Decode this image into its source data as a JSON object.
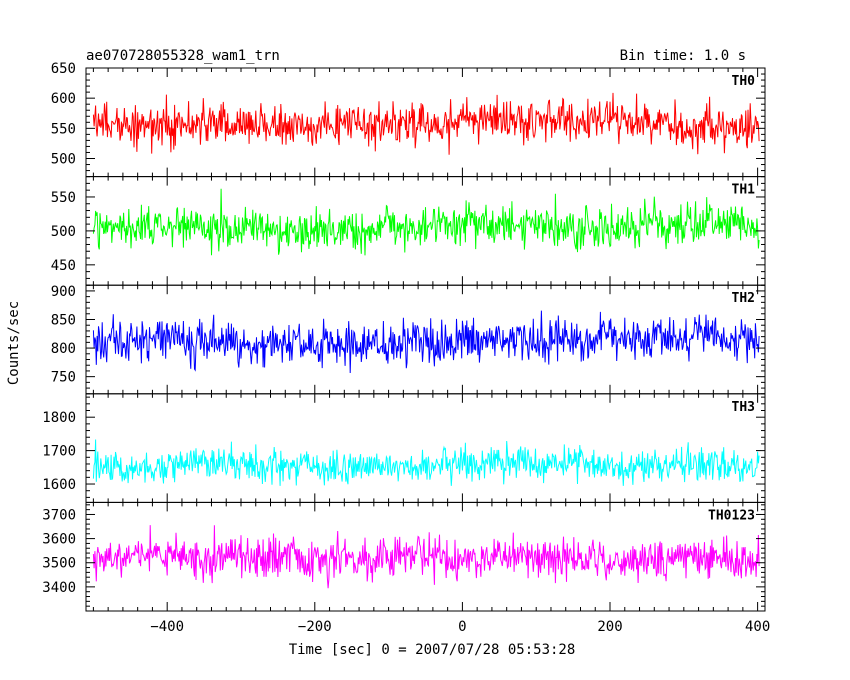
{
  "header": {
    "left_title": "ae070728055328_wam1_trn",
    "right_title": "Bin time: 1.0 s"
  },
  "chart_data": {
    "type": "line",
    "x_range": [
      -510,
      410
    ],
    "x_ticks": [
      -400,
      -200,
      0,
      200,
      400
    ],
    "x_tick_labels": [
      "−400",
      "−200",
      "0",
      "200",
      "400"
    ],
    "xlabel": "Time [sec] 0 = 2007/07/28 05:53:28",
    "ylabel": "Counts/sec",
    "x_start": -500,
    "x_end": 402,
    "bin_time": 1.0,
    "panels": [
      {
        "name": "TH0",
        "color": "#ff0000",
        "ylim": [
          470,
          650
        ],
        "y_ticks": [
          500,
          550,
          600,
          650
        ],
        "mean": 560,
        "noise": 28
      },
      {
        "name": "TH1",
        "color": "#00ff00",
        "ylim": [
          420,
          580
        ],
        "y_ticks": [
          450,
          500,
          550
        ],
        "mean": 505,
        "noise": 25
      },
      {
        "name": "TH2",
        "color": "#0000ff",
        "ylim": [
          720,
          910
        ],
        "y_ticks": [
          750,
          800,
          850,
          900
        ],
        "mean": 812,
        "noise": 30
      },
      {
        "name": "TH3",
        "color": "#00ffff",
        "ylim": [
          1545,
          1870
        ],
        "y_ticks": [
          1600,
          1700,
          1800
        ],
        "mean": 1655,
        "noise": 42
      },
      {
        "name": "TH0123",
        "color": "#ff00ff",
        "ylim": [
          3300,
          3750
        ],
        "y_ticks": [
          3400,
          3500,
          3600,
          3700
        ],
        "mean": 3515,
        "noise": 70
      }
    ]
  }
}
